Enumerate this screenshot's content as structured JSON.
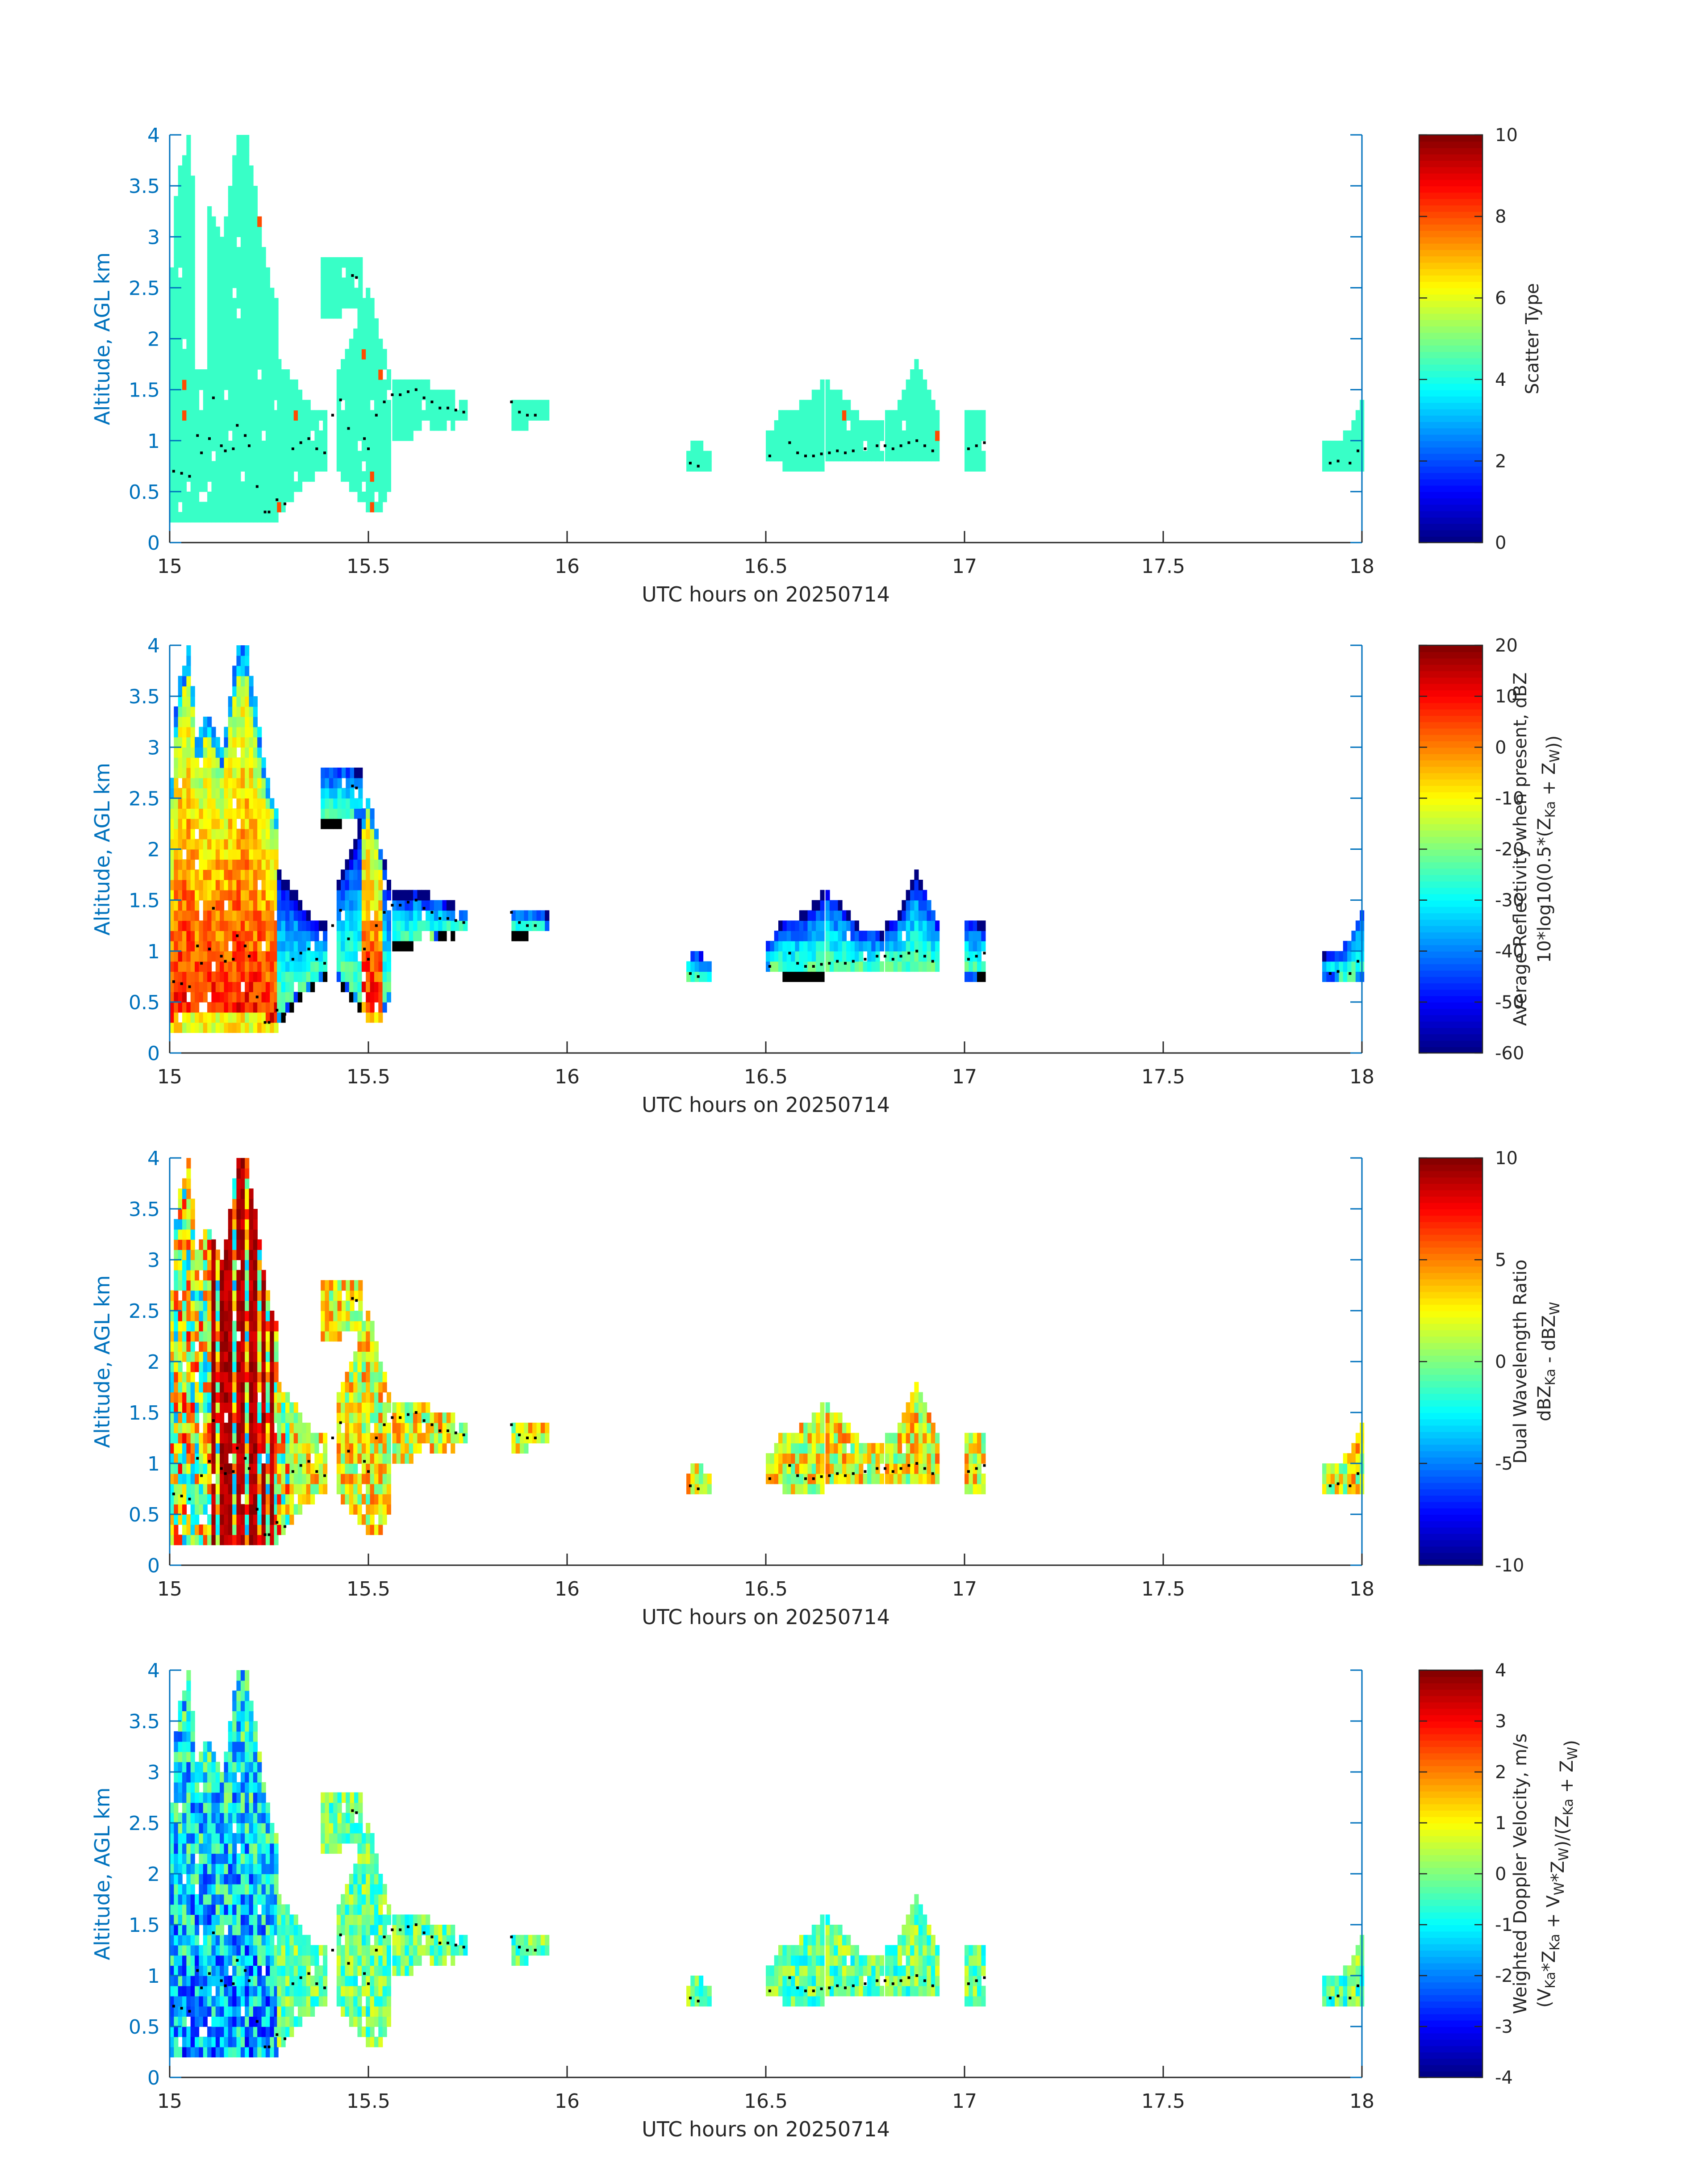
{
  "figure": {
    "date_label": "UTC hours on 20250714",
    "ylabel": "Altitude, AGL km",
    "xticks": [
      "15",
      "15.5",
      "16",
      "16.5",
      "17",
      "17.5",
      "18"
    ],
    "yticks": [
      "0",
      "0.5",
      "1",
      "1.5",
      "2",
      "2.5",
      "3",
      "3.5",
      "4"
    ],
    "colors": {
      "axis": "#0072BD",
      "text": "#262626",
      "dots": "#000000"
    }
  },
  "chart_data": [
    {
      "type": "heatmap",
      "title": "",
      "xlabel": "UTC hours on 20250714",
      "ylabel": "Altitude, AGL km",
      "xlim": [
        15,
        18
      ],
      "ylim": [
        0,
        4
      ],
      "colorbar": {
        "label_lines": [
          "Scatter Type"
        ],
        "range": [
          0,
          10
        ],
        "ticks": [
          "0",
          "2",
          "4",
          "6",
          "8",
          "10"
        ]
      },
      "field": "scatter_type",
      "uniform_value": 4.3
    },
    {
      "type": "heatmap",
      "title": "",
      "xlabel": "UTC hours on 20250714",
      "ylabel": "Altitude, AGL km",
      "xlim": [
        15,
        18
      ],
      "ylim": [
        0,
        4
      ],
      "colorbar": {
        "label_lines": [
          "Average Reflectivity when present, dBZ",
          "10*log10(0.5*(Z_Ka + Z_W))"
        ],
        "range": [
          -60,
          20
        ],
        "ticks": [
          "-60",
          "-50",
          "-40",
          "-30",
          "-20",
          "-10",
          "0",
          "10",
          "20"
        ]
      },
      "field": "reflectivity"
    },
    {
      "type": "heatmap",
      "title": "",
      "xlabel": "UTC hours on 20250714",
      "ylabel": "Altitude, AGL km",
      "xlim": [
        15,
        18
      ],
      "ylim": [
        0,
        4
      ],
      "colorbar": {
        "label_lines": [
          "Dual Wavelength Ratio",
          "dBZ_Ka - dBZ_W"
        ],
        "range": [
          -10,
          10
        ],
        "ticks": [
          "-10",
          "-5",
          "0",
          "5",
          "10"
        ]
      },
      "field": "dwr"
    },
    {
      "type": "heatmap",
      "title": "",
      "xlabel": "UTC hours on 20250714",
      "ylabel": "Altitude, AGL km",
      "xlim": [
        15,
        18
      ],
      "ylim": [
        0,
        4
      ],
      "colorbar": {
        "label_lines": [
          "Weighted Doppler Velocity, m/s",
          "(V_Ka*Z_Ka + V_W*Z_W)/(Z_Ka + Z_W)"
        ],
        "range": [
          -4,
          4
        ],
        "ticks": [
          "-4",
          "-3",
          "-2",
          "-1",
          "0",
          "1",
          "2",
          "3",
          "4"
        ]
      },
      "field": "velocity"
    }
  ],
  "echo_regions": [
    {
      "t0": 15.0,
      "t1": 15.27,
      "profile": [
        [
          0,
          0.2,
          2.3
        ],
        [
          0.02,
          0.2,
          3.6
        ],
        [
          0.05,
          0.2,
          3.95
        ],
        [
          0.07,
          0.2,
          3.0
        ],
        [
          0.09,
          0.2,
          3.3
        ],
        [
          0.11,
          0.2,
          3.2
        ],
        [
          0.13,
          0.2,
          2.9
        ],
        [
          0.15,
          0.2,
          3.4
        ],
        [
          0.17,
          0.2,
          3.95
        ],
        [
          0.19,
          0.2,
          4.0
        ],
        [
          0.21,
          0.2,
          3.55
        ],
        [
          0.23,
          0.2,
          3.0
        ],
        [
          0.25,
          0.2,
          2.6
        ],
        [
          0.27,
          0.2,
          2.3
        ]
      ]
    },
    {
      "t0": 15.27,
      "t1": 15.4,
      "profile": [
        [
          15.27,
          0.25,
          1.75
        ],
        [
          15.31,
          0.45,
          1.55
        ],
        [
          15.35,
          0.6,
          1.3
        ],
        [
          15.4,
          0.75,
          1.2
        ]
      ]
    },
    {
      "t0": 15.38,
      "t1": 15.49,
      "profile": [
        [
          15.38,
          2.2,
          2.75
        ],
        [
          15.43,
          2.25,
          2.8
        ],
        [
          15.49,
          2.3,
          2.7
        ]
      ]
    },
    {
      "t0": 15.42,
      "t1": 15.56,
      "profile": [
        [
          15.42,
          0.7,
          1.6
        ],
        [
          15.46,
          0.5,
          2.0
        ],
        [
          15.5,
          0.3,
          2.5
        ],
        [
          15.53,
          0.25,
          2.0
        ],
        [
          15.56,
          0.6,
          1.5
        ]
      ]
    },
    {
      "t0": 15.56,
      "t1": 15.75,
      "profile": [
        [
          15.56,
          1.0,
          1.5
        ],
        [
          15.62,
          1.05,
          1.55
        ],
        [
          15.68,
          1.1,
          1.45
        ],
        [
          15.75,
          1.2,
          1.35
        ]
      ]
    },
    {
      "t0": 15.86,
      "t1": 15.95,
      "profile": [
        [
          15.86,
          1.15,
          1.4
        ],
        [
          15.9,
          1.15,
          1.35
        ],
        [
          15.95,
          1.2,
          1.3
        ]
      ]
    },
    {
      "t0": 16.3,
      "t1": 16.36,
      "profile": [
        [
          16.3,
          0.65,
          0.95
        ],
        [
          16.33,
          0.65,
          0.95
        ],
        [
          16.36,
          0.65,
          0.85
        ]
      ]
    },
    {
      "t0": 16.5,
      "t1": 16.65,
      "profile": [
        [
          16.5,
          0.8,
          1.0
        ],
        [
          16.54,
          0.75,
          1.25
        ],
        [
          16.58,
          0.7,
          1.3
        ],
        [
          16.62,
          0.72,
          1.4
        ],
        [
          16.65,
          0.75,
          1.55
        ]
      ]
    },
    {
      "t0": 16.65,
      "t1": 16.8,
      "profile": [
        [
          16.65,
          0.75,
          1.6
        ],
        [
          16.69,
          0.75,
          1.4
        ],
        [
          16.73,
          0.75,
          1.2
        ],
        [
          16.77,
          0.75,
          1.15
        ],
        [
          16.8,
          0.8,
          1.1
        ]
      ]
    },
    {
      "t0": 16.8,
      "t1": 16.94,
      "profile": [
        [
          16.8,
          0.78,
          1.2
        ],
        [
          16.84,
          0.75,
          1.35
        ],
        [
          16.88,
          0.75,
          1.75
        ],
        [
          16.91,
          0.75,
          1.5
        ],
        [
          16.94,
          0.75,
          1.15
        ]
      ]
    },
    {
      "t0": 17.0,
      "t1": 17.05,
      "profile": [
        [
          17.0,
          0.7,
          1.3
        ],
        [
          17.03,
          0.7,
          1.25
        ],
        [
          17.05,
          0.75,
          1.2
        ]
      ]
    },
    {
      "t0": 17.9,
      "t1": 18.0,
      "profile": [
        [
          17.9,
          0.7,
          0.9
        ],
        [
          17.94,
          0.7,
          0.95
        ],
        [
          17.97,
          0.65,
          1.1
        ],
        [
          18.0,
          0.7,
          1.4
        ]
      ]
    }
  ],
  "cloud_base_dots": [
    [
      15.01,
      0.7
    ],
    [
      15.03,
      0.68
    ],
    [
      15.05,
      0.65
    ],
    [
      15.07,
      1.05
    ],
    [
      15.08,
      0.88
    ],
    [
      15.1,
      1.02
    ],
    [
      15.11,
      1.42
    ],
    [
      15.13,
      0.95
    ],
    [
      15.14,
      0.9
    ],
    [
      15.16,
      0.92
    ],
    [
      15.17,
      1.15
    ],
    [
      15.19,
      1.05
    ],
    [
      15.2,
      0.95
    ],
    [
      15.22,
      0.55
    ],
    [
      15.24,
      0.3
    ],
    [
      15.25,
      0.3
    ],
    [
      15.27,
      0.42
    ],
    [
      15.29,
      0.38
    ],
    [
      15.31,
      0.92
    ],
    [
      15.33,
      0.98
    ],
    [
      15.35,
      1.02
    ],
    [
      15.37,
      0.92
    ],
    [
      15.39,
      0.88
    ],
    [
      15.41,
      1.25
    ],
    [
      15.43,
      1.4
    ],
    [
      15.45,
      1.12
    ],
    [
      15.46,
      2.62
    ],
    [
      15.47,
      2.6
    ],
    [
      15.49,
      1.02
    ],
    [
      15.5,
      0.92
    ],
    [
      15.52,
      1.25
    ],
    [
      15.54,
      1.38
    ],
    [
      15.56,
      1.45
    ],
    [
      15.58,
      1.45
    ],
    [
      15.6,
      1.48
    ],
    [
      15.62,
      1.5
    ],
    [
      15.64,
      1.42
    ],
    [
      15.66,
      1.38
    ],
    [
      15.68,
      1.32
    ],
    [
      15.7,
      1.32
    ],
    [
      15.72,
      1.3
    ],
    [
      15.74,
      1.28
    ],
    [
      15.86,
      1.38
    ],
    [
      15.88,
      1.28
    ],
    [
      15.9,
      1.25
    ],
    [
      15.92,
      1.25
    ],
    [
      16.31,
      0.78
    ],
    [
      16.33,
      0.75
    ],
    [
      16.51,
      0.85
    ],
    [
      16.56,
      0.98
    ],
    [
      16.58,
      0.88
    ],
    [
      16.6,
      0.85
    ],
    [
      16.62,
      0.85
    ],
    [
      16.64,
      0.87
    ],
    [
      16.66,
      0.88
    ],
    [
      16.68,
      0.9
    ],
    [
      16.7,
      0.88
    ],
    [
      16.72,
      0.9
    ],
    [
      16.75,
      0.92
    ],
    [
      16.78,
      0.95
    ],
    [
      16.8,
      0.95
    ],
    [
      16.82,
      0.92
    ],
    [
      16.84,
      0.95
    ],
    [
      16.86,
      0.98
    ],
    [
      16.88,
      1.0
    ],
    [
      16.9,
      0.95
    ],
    [
      16.92,
      0.9
    ],
    [
      17.01,
      0.92
    ],
    [
      17.03,
      0.95
    ],
    [
      17.05,
      0.98
    ],
    [
      17.92,
      0.78
    ],
    [
      17.94,
      0.8
    ],
    [
      17.97,
      0.78
    ],
    [
      17.99,
      0.9
    ]
  ]
}
